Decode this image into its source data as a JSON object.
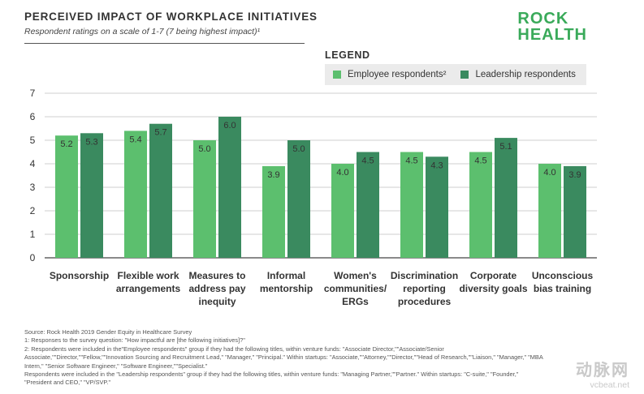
{
  "header": {
    "title": "PERCEIVED IMPACT OF WORKPLACE INITIATIVES",
    "subtitle": "Respondent ratings on a scale of 1-7 (7 being highest impact)¹"
  },
  "logo": {
    "line1": "ROCK",
    "line2": "HEALTH"
  },
  "legend": {
    "title": "LEGEND",
    "items": [
      {
        "label": "Employee respondents²",
        "color": "#5cbf6e"
      },
      {
        "label": "Leadership respondents",
        "color": "#3a8a5f"
      }
    ]
  },
  "chart_data": {
    "type": "bar",
    "title": "PERCEIVED IMPACT OF WORKPLACE INITIATIVES",
    "subtitle": "Respondent ratings on a scale of 1-7 (7 being highest impact)",
    "xlabel": "",
    "ylabel": "",
    "ylim": [
      0,
      7
    ],
    "yticks": [
      0,
      1,
      2,
      3,
      4,
      5,
      6,
      7
    ],
    "grid": true,
    "categories": [
      [
        "Sponsorship"
      ],
      [
        "Flexible work",
        "arrangements"
      ],
      [
        "Measures to",
        "address pay",
        "inequity"
      ],
      [
        "Informal",
        "mentorship"
      ],
      [
        "Women's",
        "communities/",
        "ERGs"
      ],
      [
        "Discrimination",
        "reporting",
        "procedures"
      ],
      [
        "Corporate",
        "diversity goals"
      ],
      [
        "Unconscious",
        "bias training"
      ]
    ],
    "series": [
      {
        "name": "Employee respondents",
        "color": "#5cbf6e",
        "values": [
          5.2,
          5.4,
          5.0,
          3.9,
          4.0,
          4.5,
          4.5,
          4.0
        ]
      },
      {
        "name": "Leadership respondents",
        "color": "#3a8a5f",
        "values": [
          5.3,
          5.7,
          6.0,
          5.0,
          4.5,
          4.3,
          5.1,
          3.9
        ]
      }
    ]
  },
  "footnotes": [
    "Source: Rock Health 2019 Gender Equity in Healthcare Survey",
    "1: Responses to the survey question: \"How impactful are [the following initiatives]?\"",
    "2: Respondents were included in the\"Employee respondents\" group if they had the following titles, within venture funds: \"Associate Director,\"\"Associate/Senior Associate,\"\"Director,\"\"Fellow,\"\"Innovation Sourcing and Recruitment Lead,\" \"Manager,\" \"Principal.\" Within startups: \"Associate,\"\"Attorney,\"\"Director,\"\"Head of Research,\"\"Liaison,\" \"Manager,\" \"MBA Intern,\" \"Senior Software Engineer,\" \"Software Engineer,\"\"Specialist.\"",
    "Respondents were included in the \"Leadership respondents\" group if they had the following titles, within venture funds: \"Managing Partner,\"\"Partner.\" Within startups: \"C-suite,\" \"Founder,\" \"President and CEO,\" \"VP/SVP.\""
  ],
  "watermark": {
    "cn": "动脉网",
    "en": "vcbeat.net"
  }
}
